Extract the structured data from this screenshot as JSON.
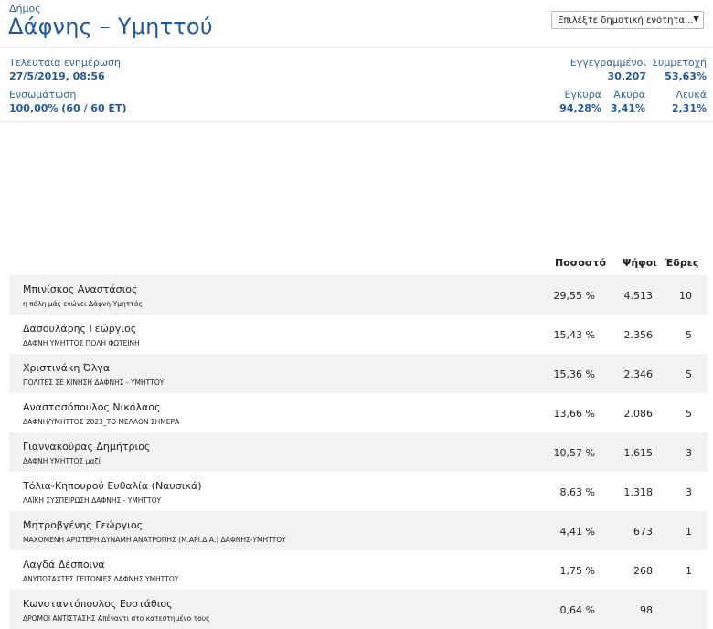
{
  "header": {
    "municipality_label": "Δήμος",
    "municipality_name": "Δάφνης – Υμηττού",
    "unit_select": {
      "selected": "Επιλέξτε δημοτική ενότητα..."
    }
  },
  "stats": {
    "last_update_label": "Τελευταία ενημέρωση",
    "last_update_value": "27/5/2019, 08:56",
    "integration_label": "Ενσωμάτωση",
    "integration_value": "100,00% (60 / 60 ΕΤ)",
    "registered_label": "Εγγεγραμμένοι",
    "registered_value": "30.207",
    "turnout_label": "Συμμετοχή",
    "turnout_value": "53,63%",
    "valid_label": "Έγκυρα",
    "valid_value": "94,28%",
    "invalid_label": "Άκυρα",
    "invalid_value": "3,41%",
    "blank_label": "Λευκά",
    "blank_value": "2,31%"
  },
  "table": {
    "headers": {
      "percent": "Ποσοστό",
      "votes": "Ψήφοι",
      "seats": "Έδρες"
    },
    "rows": [
      {
        "candidate": "Μπινίσκος Αναστάσιος",
        "party": "η πόλη μάς ενώνει Δάφνη-Υμηττός",
        "percent": "29,55 %",
        "votes": "4.513",
        "seats": "10"
      },
      {
        "candidate": "Δασουλάρης Γεώργιος",
        "party": "ΔΑΦΝΗ ΥΜΗΤΤΟΣ ΠΟΛΗ ΦΩΤΕΙΝΗ",
        "percent": "15,43 %",
        "votes": "2.356",
        "seats": "5"
      },
      {
        "candidate": "Χριστινάκη Όλγα",
        "party": "ΠΟΛΙΤΕΣ ΣΕ ΚΙΝΗΣΗ ΔΑΦΝΗΣ - ΥΜΗΤΤΟΥ",
        "percent": "15,36 %",
        "votes": "2.346",
        "seats": "5"
      },
      {
        "candidate": "Αναστασόπουλος Νικόλαος",
        "party": "ΔΑΦΝΗ/ΥΜΗΤΤΟΣ 2023_ΤΟ ΜΕΛΛΟΝ ΣΗΜΕΡΑ",
        "percent": "13,66 %",
        "votes": "2.086",
        "seats": "5"
      },
      {
        "candidate": "Γιαννακούρας Δημήτριος",
        "party": "ΔΑΦΝΗ ΥΜΗΤΤΟΣ μαζί",
        "percent": "10,57 %",
        "votes": "1.615",
        "seats": "3"
      },
      {
        "candidate": "Τόλια-Κηπουρού Ευθαλία (Ναυσικά)",
        "party": "ΛΑΪΚΗ ΣΥΣΠΕΙΡΩΣΗ ΔΑΦΝΗΣ - ΥΜΗΤΤΟΥ",
        "percent": "8,63 %",
        "votes": "1.318",
        "seats": "3"
      },
      {
        "candidate": "Μητροβγένης Γεώργιος",
        "party": "ΜΑΧΟΜΕΝΗ ΑΡΙΣΤΕΡΗ ΔΥΝΑΜΗ ΑΝΑΤΡΟΠΗΣ (Μ.ΑΡΙ.Δ.Α.) ΔΑΦΝΗΣ-ΥΜΗΤΤΟΥ",
        "percent": "4,41 %",
        "votes": "673",
        "seats": "1"
      },
      {
        "candidate": "Λαγδά Δέσποινα",
        "party": "ΑΝΥΠΟΤΑΧΤΕΣ ΓΕΙΤΟΝΙΕΣ ΔΑΦΝΗΣ ΥΜΗΤΤΟΥ",
        "percent": "1,75 %",
        "votes": "268",
        "seats": "1"
      },
      {
        "candidate": "Κωνσταντόπουλος Ευστάθιος",
        "party": "ΔΡΟΜΟΙ ΑΝΤΙΣΤΑΣΗΣ Απέναντι στο κατεστημένο τους",
        "percent": "0,64 %",
        "votes": "98",
        "seats": ""
      }
    ]
  }
}
